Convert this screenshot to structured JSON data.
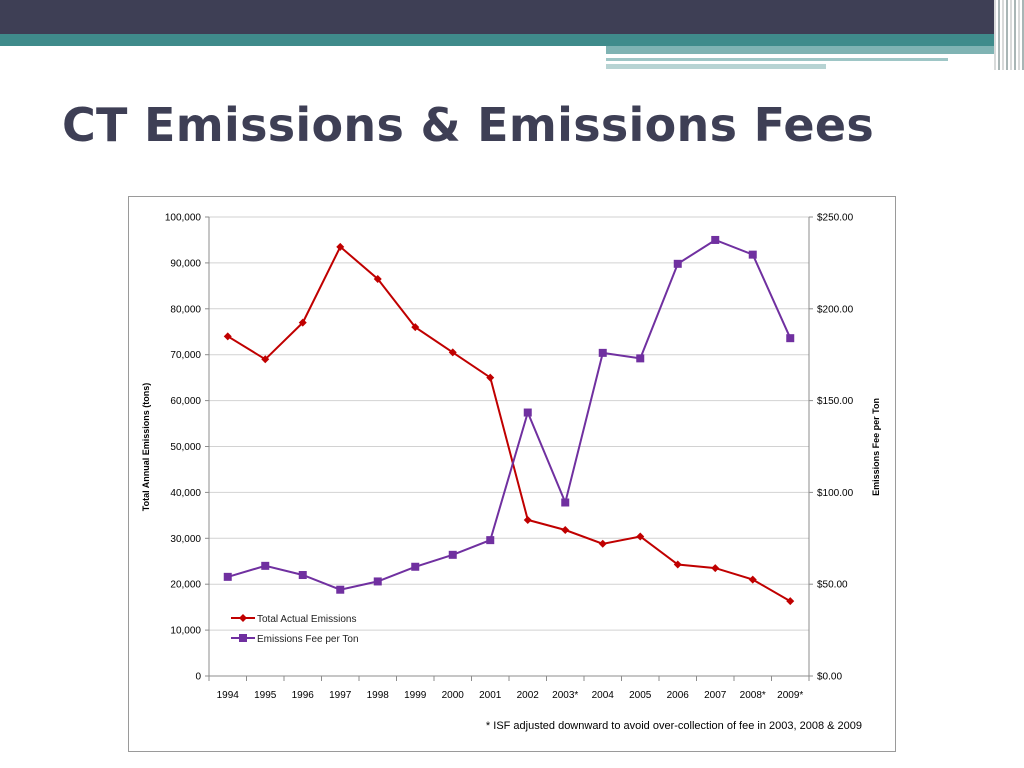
{
  "slide": {
    "title": "CT Emissions & Emissions Fees"
  },
  "colors": {
    "header_dark": "#3e3f55",
    "header_teal": "#3f8b8b",
    "emissions_series": "#c00000",
    "fee_series": "#7030a0"
  },
  "chart_data": {
    "type": "line",
    "x": [
      "1994",
      "1995",
      "1996",
      "1997",
      "1998",
      "1999",
      "2000",
      "2001",
      "2002",
      "2003*",
      "2004",
      "2005",
      "2006",
      "2007",
      "2008*",
      "2009*"
    ],
    "series": [
      {
        "name": "Total Actual Emissions",
        "axis": "left",
        "marker": "diamond",
        "color": "#c00000",
        "values": [
          74000,
          69000,
          77000,
          93500,
          86500,
          76000,
          70500,
          65000,
          34000,
          31800,
          28800,
          30400,
          24300,
          23500,
          21000,
          16300
        ]
      },
      {
        "name": "Emissions Fee per Ton",
        "axis": "right",
        "marker": "square",
        "color": "#7030a0",
        "values": [
          54,
          60,
          55,
          47,
          51.5,
          59.5,
          66,
          74,
          143.5,
          94.5,
          176,
          173,
          224.5,
          237.5,
          229.5,
          184
        ]
      }
    ],
    "ylabel": "Total Annual Emissions (tons)",
    "y2label": "Emissions Fee per Ton",
    "ylim": [
      0,
      100000
    ],
    "y2lim": [
      0,
      250
    ],
    "yticks": [
      "0",
      "10,000",
      "20,000",
      "30,000",
      "40,000",
      "50,000",
      "60,000",
      "70,000",
      "80,000",
      "90,000",
      "100,000"
    ],
    "y2ticks": [
      "$0.00",
      "$50.00",
      "$100.00",
      "$150.00",
      "$200.00",
      "$250.00"
    ],
    "grid": true,
    "legend_position": "bottom-left",
    "footnote": "* ISF adjusted downward to avoid over-collection of fee in 2003, 2008 & 2009"
  }
}
